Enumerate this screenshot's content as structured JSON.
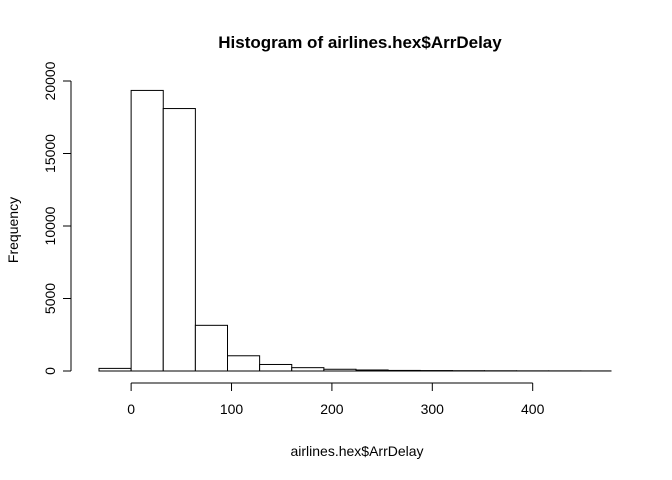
{
  "chart_data": {
    "type": "bar",
    "title": "Histogram of airlines.hex$ArrDelay",
    "xlabel": "airlines.hex$ArrDelay",
    "ylabel": "Frequency",
    "xlim": [
      -32,
      478
    ],
    "ylim": [
      0,
      20000
    ],
    "x_ticks": [
      0,
      100,
      200,
      300,
      400
    ],
    "y_ticks": [
      0,
      5000,
      10000,
      15000,
      20000
    ],
    "bins": [
      {
        "x0": -32,
        "x1": 0,
        "count": 180
      },
      {
        "x0": 0,
        "x1": 32,
        "count": 19350
      },
      {
        "x0": 32,
        "x1": 64,
        "count": 18100
      },
      {
        "x0": 64,
        "x1": 96,
        "count": 3150
      },
      {
        "x0": 96,
        "x1": 128,
        "count": 1050
      },
      {
        "x0": 128,
        "x1": 160,
        "count": 450
      },
      {
        "x0": 160,
        "x1": 192,
        "count": 230
      },
      {
        "x0": 192,
        "x1": 224,
        "count": 120
      },
      {
        "x0": 224,
        "x1": 256,
        "count": 70
      },
      {
        "x0": 256,
        "x1": 288,
        "count": 40
      },
      {
        "x0": 288,
        "x1": 320,
        "count": 30
      },
      {
        "x0": 320,
        "x1": 352,
        "count": 20
      },
      {
        "x0": 352,
        "x1": 384,
        "count": 15
      },
      {
        "x0": 384,
        "x1": 416,
        "count": 10
      },
      {
        "x0": 416,
        "x1": 448,
        "count": 8
      },
      {
        "x0": 448,
        "x1": 478,
        "count": 5
      }
    ],
    "grid": false,
    "legend": "none",
    "colors": {
      "bar_fill": "#ffffff",
      "bar_stroke": "#000000"
    }
  }
}
